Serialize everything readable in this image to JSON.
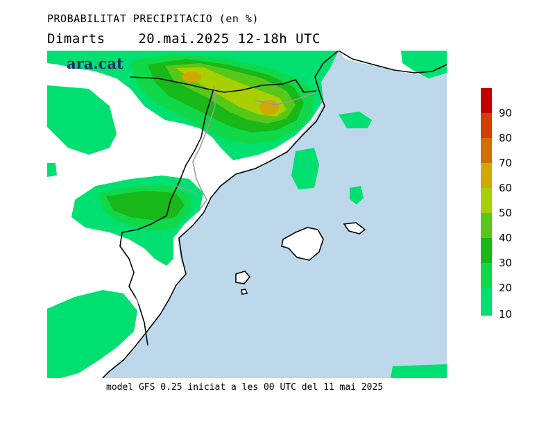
{
  "header": {
    "title": "PROBABILITAT PRECIPITACIO (en %)",
    "subtitle": "Dimarts    20.mai.2025 12-18h UTC"
  },
  "logo_text": "ara.cat",
  "footer": "model GFS 0.25 iniciat a les 00 UTC del 11 mai 2025",
  "legend": {
    "labels": [
      "90",
      "80",
      "70",
      "60",
      "50",
      "40",
      "30",
      "20",
      "10"
    ],
    "colors": [
      "#c00000",
      "#d04000",
      "#d07000",
      "#d0a800",
      "#a8d000",
      "#58c818",
      "#18b818",
      "#10d848",
      "#00e070"
    ]
  },
  "map_colors": {
    "sea": "#bcd8ea",
    "land_no_precip": "#ffffff",
    "prob_10": "#00e070",
    "prob_20": "#10d848",
    "prob_30": "#18b818",
    "prob_40": "#58c818",
    "prob_50": "#a8d000",
    "prob_60": "#d0a800"
  }
}
